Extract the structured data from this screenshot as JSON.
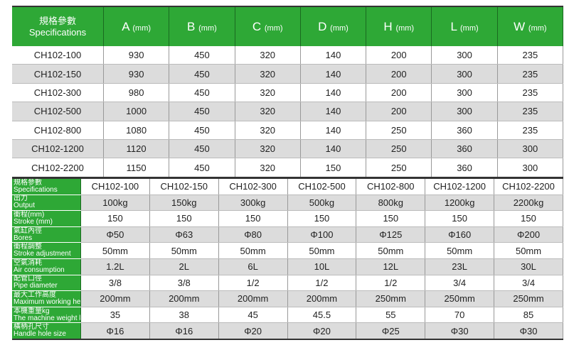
{
  "table1": {
    "header": {
      "zh": "規格參數",
      "en": "Specifications",
      "columns": [
        {
          "letter": "A",
          "unit": "(mm)"
        },
        {
          "letter": "B",
          "unit": "(mm)"
        },
        {
          "letter": "C",
          "unit": "(mm)"
        },
        {
          "letter": "D",
          "unit": "(mm)"
        },
        {
          "letter": "H",
          "unit": "(mm)"
        },
        {
          "letter": "L",
          "unit": "(mm)"
        },
        {
          "letter": "W",
          "unit": "(mm)"
        }
      ]
    },
    "rows": [
      [
        "CH102-100",
        "930",
        "450",
        "320",
        "140",
        "200",
        "300",
        "235"
      ],
      [
        "CH102-150",
        "930",
        "450",
        "320",
        "140",
        "200",
        "300",
        "235"
      ],
      [
        "CH102-300",
        "980",
        "450",
        "320",
        "140",
        "200",
        "300",
        "235"
      ],
      [
        "CH102-500",
        "1000",
        "450",
        "320",
        "140",
        "200",
        "300",
        "235"
      ],
      [
        "CH102-800",
        "1080",
        "450",
        "320",
        "140",
        "250",
        "360",
        "235"
      ],
      [
        "CH102-1200",
        "1120",
        "450",
        "320",
        "140",
        "250",
        "360",
        "300"
      ],
      [
        "CH102-2200",
        "1150",
        "450",
        "320",
        "150",
        "250",
        "360",
        "300"
      ]
    ]
  },
  "table2": {
    "rows": [
      {
        "zh": "規格參數",
        "en": "Specifications",
        "values": [
          "CH102-100",
          "CH102-150",
          "CH102-300",
          "CH102-500",
          "CH102-800",
          "CH102-1200",
          "CH102-2200"
        ]
      },
      {
        "zh": "出力",
        "en": "Output",
        "values": [
          "100kg",
          "150kg",
          "300kg",
          "500kg",
          "800kg",
          "1200kg",
          "2200kg"
        ]
      },
      {
        "zh": "衝程(mm)",
        "en": "Stroke (mm)",
        "values": [
          "150",
          "150",
          "150",
          "150",
          "150",
          "150",
          "150"
        ]
      },
      {
        "zh": "氣缸內徑",
        "en": "Bores",
        "values": [
          "Φ50",
          "Φ63",
          "Φ80",
          "Φ100",
          "Φ125",
          "Φ160",
          "Φ200"
        ]
      },
      {
        "zh": "衝程調整",
        "en": "Stroke adjustment",
        "values": [
          "50mm",
          "50mm",
          "50mm",
          "50mm",
          "50mm",
          "50mm",
          "50mm"
        ]
      },
      {
        "zh": "空氣消耗",
        "en": "Air consumption",
        "values": [
          "1.2L",
          "2L",
          "6L",
          "10L",
          "12L",
          "23L",
          "30L"
        ]
      },
      {
        "zh": "配管口徑",
        "en": "Pipe diameter",
        "values": [
          "3/8",
          "3/8",
          "1/2",
          "1/2",
          "1/2",
          "3/4",
          "3/4"
        ]
      },
      {
        "zh": "最大工作高度",
        "en": "Maximum working height",
        "values": [
          "200mm",
          "200mm",
          "200mm",
          "200mm",
          "250mm",
          "250mm",
          "250mm"
        ]
      },
      {
        "zh": "本機重量kg",
        "en": "The machine weight kg",
        "values": [
          "35",
          "38",
          "45",
          "45.5",
          "55",
          "70",
          "85"
        ]
      },
      {
        "zh": "橫柄孔尺寸",
        "en": "Handle hole size",
        "values": [
          "Φ16",
          "Φ16",
          "Φ20",
          "Φ20",
          "Φ25",
          "Φ30",
          "Φ30"
        ]
      }
    ]
  }
}
